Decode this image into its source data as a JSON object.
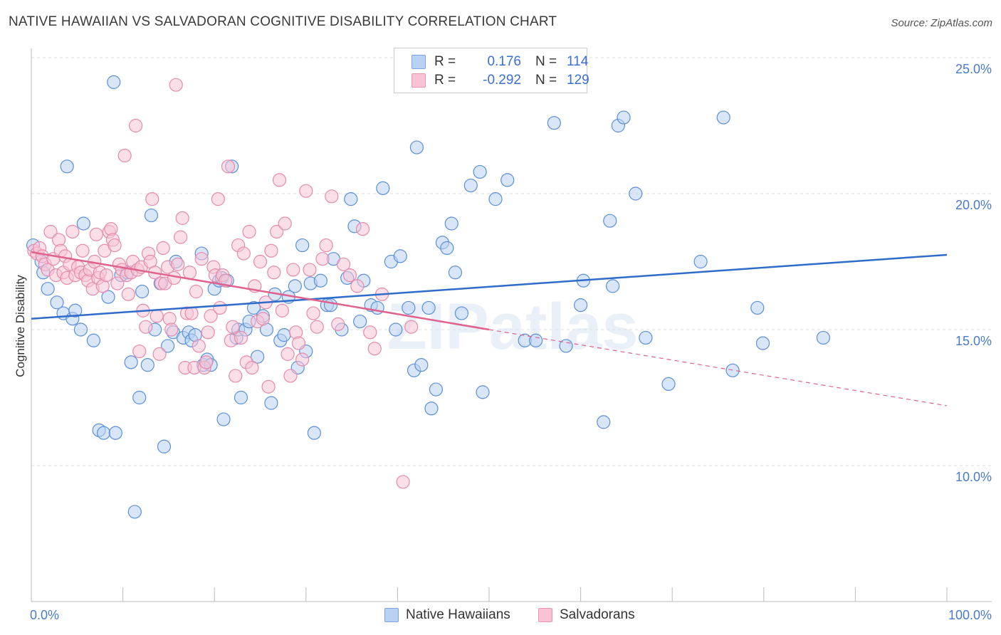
{
  "header": {
    "title": "NATIVE HAWAIIAN VS SALVADORAN COGNITIVE DISABILITY CORRELATION CHART",
    "source": "Source: ZipAtlas.com"
  },
  "legend_top": {
    "rows": [
      {
        "r_label": "R =",
        "r_value": "0.176",
        "n_label": "N =",
        "n_value": "114"
      },
      {
        "r_label": "R =",
        "r_value": "-0.292",
        "n_label": "N =",
        "n_value": "129"
      }
    ]
  },
  "watermark": "ZIPatlas",
  "colors": {
    "blue_fill": "#b9d1f3",
    "blue_stroke": "#5b8fd9",
    "blue_line": "#2f6cc9",
    "pink_fill": "#f8c4d5",
    "pink_stroke": "#e58aab",
    "pink_line": "#e0628e",
    "axis_label": "#4a7bc8",
    "grid": "#dddddd"
  },
  "chart_data": {
    "type": "scatter",
    "ylabel": "Cognitive Disability",
    "x_tick_labels": [
      "0.0%",
      "100.0%"
    ],
    "y_ticks": [
      {
        "value": 10,
        "label": "10.0%"
      },
      {
        "value": 15,
        "label": "15.0%"
      },
      {
        "value": 20,
        "label": "20.0%"
      },
      {
        "value": 25,
        "label": "25.0%"
      }
    ],
    "xlim": [
      0,
      100
    ],
    "ylim": [
      5,
      25.6
    ],
    "legend_placement": "bottom-center",
    "series": [
      {
        "name": "Native Hawaiians",
        "color": "blue",
        "trend": {
          "x0": 0,
          "y0": 15.4,
          "x1": 100,
          "y1": 17.75
        },
        "points": [
          [
            0.2,
            18.1
          ],
          [
            1.1,
            17.5
          ],
          [
            1.3,
            17.1
          ],
          [
            1.8,
            16.5
          ],
          [
            2.8,
            16.0
          ],
          [
            3.5,
            15.6
          ],
          [
            3.9,
            21.0
          ],
          [
            4.5,
            15.4
          ],
          [
            4.8,
            15.7
          ],
          [
            5.4,
            15.0
          ],
          [
            5.7,
            18.9
          ],
          [
            6.8,
            14.6
          ],
          [
            7.4,
            11.3
          ],
          [
            7.9,
            11.2
          ],
          [
            8.4,
            16.2
          ],
          [
            9.0,
            24.1
          ],
          [
            9.2,
            11.2
          ],
          [
            9.8,
            17.0
          ],
          [
            10.5,
            17.1
          ],
          [
            10.9,
            13.8
          ],
          [
            11.3,
            8.3
          ],
          [
            11.8,
            12.5
          ],
          [
            12.1,
            16.4
          ],
          [
            12.7,
            13.7
          ],
          [
            13.1,
            19.2
          ],
          [
            13.5,
            15.0
          ],
          [
            14.1,
            16.7
          ],
          [
            14.5,
            10.7
          ],
          [
            14.9,
            14.4
          ],
          [
            15.5,
            14.9
          ],
          [
            15.8,
            17.5
          ],
          [
            16.6,
            14.7
          ],
          [
            17.2,
            14.9
          ],
          [
            17.5,
            14.6
          ],
          [
            17.9,
            14.8
          ],
          [
            18.6,
            17.8
          ],
          [
            18.8,
            13.7
          ],
          [
            19.2,
            13.9
          ],
          [
            19.6,
            13.7
          ],
          [
            20.0,
            16.5
          ],
          [
            20.5,
            16.8
          ],
          [
            20.8,
            16.9
          ],
          [
            21.0,
            11.7
          ],
          [
            21.4,
            16.8
          ],
          [
            21.9,
            21.0
          ],
          [
            22.4,
            14.7
          ],
          [
            22.6,
            15.0
          ],
          [
            22.9,
            12.5
          ],
          [
            23.4,
            15.0
          ],
          [
            23.8,
            15.3
          ],
          [
            24.3,
            15.8
          ],
          [
            24.7,
            14.0
          ],
          [
            25.3,
            15.5
          ],
          [
            25.7,
            15.0
          ],
          [
            26.2,
            12.3
          ],
          [
            26.6,
            16.3
          ],
          [
            27.2,
            14.6
          ],
          [
            27.6,
            14.8
          ],
          [
            28.1,
            16.2
          ],
          [
            28.8,
            16.6
          ],
          [
            29.1,
            13.6
          ],
          [
            29.6,
            18.1
          ],
          [
            30.0,
            14.2
          ],
          [
            30.5,
            16.7
          ],
          [
            30.9,
            11.2
          ],
          [
            31.6,
            16.8
          ],
          [
            32.3,
            15.9
          ],
          [
            32.7,
            15.9
          ],
          [
            33.0,
            17.6
          ],
          [
            33.9,
            15.0
          ],
          [
            34.5,
            16.9
          ],
          [
            34.9,
            19.8
          ],
          [
            35.3,
            18.8
          ],
          [
            35.9,
            15.3
          ],
          [
            36.3,
            16.8
          ],
          [
            37.1,
            15.9
          ],
          [
            37.8,
            15.8
          ],
          [
            38.4,
            20.2
          ],
          [
            39.3,
            17.5
          ],
          [
            39.8,
            15.0
          ],
          [
            40.3,
            17.7
          ],
          [
            41.2,
            15.8
          ],
          [
            41.8,
            13.5
          ],
          [
            42.1,
            21.7
          ],
          [
            42.6,
            13.7
          ],
          [
            43.4,
            15.8
          ],
          [
            43.7,
            12.1
          ],
          [
            44.2,
            12.8
          ],
          [
            44.9,
            18.2
          ],
          [
            45.4,
            18.0
          ],
          [
            45.9,
            18.9
          ],
          [
            46.3,
            17.1
          ],
          [
            47.0,
            15.6
          ],
          [
            48.0,
            20.3
          ],
          [
            49.0,
            20.8
          ],
          [
            49.3,
            12.7
          ],
          [
            50.7,
            19.8
          ],
          [
            52.0,
            20.5
          ],
          [
            53.9,
            14.6
          ],
          [
            55.1,
            14.6
          ],
          [
            57.1,
            22.6
          ],
          [
            58.4,
            14.4
          ],
          [
            60.0,
            15.9
          ],
          [
            60.3,
            16.8
          ],
          [
            62.5,
            11.6
          ],
          [
            63.2,
            19.0
          ],
          [
            63.5,
            16.6
          ],
          [
            64.1,
            22.5
          ],
          [
            64.7,
            22.8
          ],
          [
            66.0,
            20.0
          ],
          [
            67.1,
            14.7
          ],
          [
            69.6,
            13.0
          ],
          [
            73.1,
            17.5
          ],
          [
            75.6,
            22.8
          ],
          [
            76.6,
            13.5
          ],
          [
            79.3,
            15.8
          ],
          [
            79.9,
            14.5
          ],
          [
            86.5,
            14.7
          ]
        ]
      },
      {
        "name": "Salvadorans",
        "color": "pink",
        "trend": {
          "x0": 0,
          "y0": 17.85,
          "x1": 50,
          "y1": 15.0,
          "dashed_x1": 100,
          "dashed_y1": 12.2
        },
        "points": [
          [
            0.3,
            17.9
          ],
          [
            0.6,
            17.8
          ],
          [
            0.9,
            18.0
          ],
          [
            1.2,
            17.7
          ],
          [
            1.5,
            17.4
          ],
          [
            1.8,
            17.2
          ],
          [
            2.1,
            18.6
          ],
          [
            2.4,
            17.6
          ],
          [
            2.7,
            17.0
          ],
          [
            3.0,
            18.3
          ],
          [
            3.2,
            17.9
          ],
          [
            3.5,
            17.1
          ],
          [
            3.7,
            17.7
          ],
          [
            3.9,
            16.9
          ],
          [
            4.2,
            17.4
          ],
          [
            4.5,
            18.6
          ],
          [
            4.8,
            17.0
          ],
          [
            5.1,
            17.3
          ],
          [
            5.4,
            17.1
          ],
          [
            5.6,
            17.9
          ],
          [
            5.9,
            17.0
          ],
          [
            6.2,
            16.8
          ],
          [
            6.4,
            17.2
          ],
          [
            6.7,
            16.5
          ],
          [
            6.9,
            17.5
          ],
          [
            7.1,
            18.5
          ],
          [
            7.3,
            16.9
          ],
          [
            7.5,
            17.1
          ],
          [
            7.8,
            16.6
          ],
          [
            8.0,
            17.9
          ],
          [
            8.2,
            17.0
          ],
          [
            8.5,
            18.6
          ],
          [
            8.7,
            18.7
          ],
          [
            8.9,
            18.3
          ],
          [
            9.1,
            18.1
          ],
          [
            9.4,
            16.7
          ],
          [
            9.6,
            17.4
          ],
          [
            9.9,
            17.2
          ],
          [
            10.2,
            21.4
          ],
          [
            10.4,
            17.0
          ],
          [
            10.6,
            16.3
          ],
          [
            10.9,
            17.1
          ],
          [
            11.1,
            17.5
          ],
          [
            11.4,
            22.5
          ],
          [
            11.6,
            17.2
          ],
          [
            11.8,
            14.2
          ],
          [
            12.0,
            17.3
          ],
          [
            12.2,
            15.7
          ],
          [
            12.5,
            15.1
          ],
          [
            12.8,
            17.8
          ],
          [
            13.0,
            17.5
          ],
          [
            13.2,
            19.8
          ],
          [
            13.5,
            17.1
          ],
          [
            13.7,
            15.5
          ],
          [
            14.0,
            14.1
          ],
          [
            14.2,
            16.7
          ],
          [
            14.4,
            18.0
          ],
          [
            14.6,
            16.7
          ],
          [
            14.9,
            17.3
          ],
          [
            15.1,
            15.4
          ],
          [
            15.3,
            15.0
          ],
          [
            15.6,
            16.9
          ],
          [
            15.8,
            24.0
          ],
          [
            16.0,
            17.4
          ],
          [
            16.3,
            18.4
          ],
          [
            16.5,
            19.1
          ],
          [
            16.8,
            13.6
          ],
          [
            17.0,
            15.6
          ],
          [
            17.3,
            17.1
          ],
          [
            17.5,
            15.6
          ],
          [
            17.8,
            13.6
          ],
          [
            18.0,
            16.4
          ],
          [
            18.3,
            14.4
          ],
          [
            18.6,
            17.6
          ],
          [
            18.9,
            13.6
          ],
          [
            19.1,
            13.8
          ],
          [
            19.3,
            14.9
          ],
          [
            19.6,
            15.5
          ],
          [
            19.9,
            17.3
          ],
          [
            20.1,
            17.0
          ],
          [
            20.4,
            19.8
          ],
          [
            20.6,
            15.8
          ],
          [
            20.9,
            17.0
          ],
          [
            21.2,
            16.8
          ],
          [
            21.5,
            21.0
          ],
          [
            21.8,
            14.6
          ],
          [
            22.0,
            15.1
          ],
          [
            22.3,
            13.3
          ],
          [
            22.6,
            18.1
          ],
          [
            22.9,
            14.7
          ],
          [
            23.2,
            17.8
          ],
          [
            23.5,
            13.8
          ],
          [
            23.8,
            18.6
          ],
          [
            24.1,
            13.6
          ],
          [
            24.4,
            16.6
          ],
          [
            24.7,
            15.3
          ],
          [
            25.0,
            17.5
          ],
          [
            25.3,
            15.4
          ],
          [
            25.6,
            16.0
          ],
          [
            25.9,
            12.9
          ],
          [
            26.2,
            17.9
          ],
          [
            26.5,
            17.1
          ],
          [
            26.8,
            18.6
          ],
          [
            27.1,
            20.5
          ],
          [
            27.4,
            15.7
          ],
          [
            27.7,
            18.9
          ],
          [
            28.0,
            14.1
          ],
          [
            28.3,
            13.3
          ],
          [
            28.6,
            17.2
          ],
          [
            28.9,
            14.9
          ],
          [
            29.2,
            14.5
          ],
          [
            29.6,
            13.9
          ],
          [
            30.0,
            20.1
          ],
          [
            30.4,
            17.2
          ],
          [
            30.8,
            15.6
          ],
          [
            31.2,
            15.1
          ],
          [
            31.8,
            17.6
          ],
          [
            32.2,
            18.1
          ],
          [
            32.8,
            19.9
          ],
          [
            33.5,
            15.2
          ],
          [
            34.1,
            17.4
          ],
          [
            34.8,
            17.0
          ],
          [
            35.6,
            16.6
          ],
          [
            36.2,
            18.7
          ],
          [
            37.0,
            14.9
          ],
          [
            37.5,
            14.3
          ],
          [
            38.3,
            16.3
          ],
          [
            40.6,
            9.4
          ],
          [
            41.5,
            15.1
          ]
        ]
      }
    ]
  }
}
